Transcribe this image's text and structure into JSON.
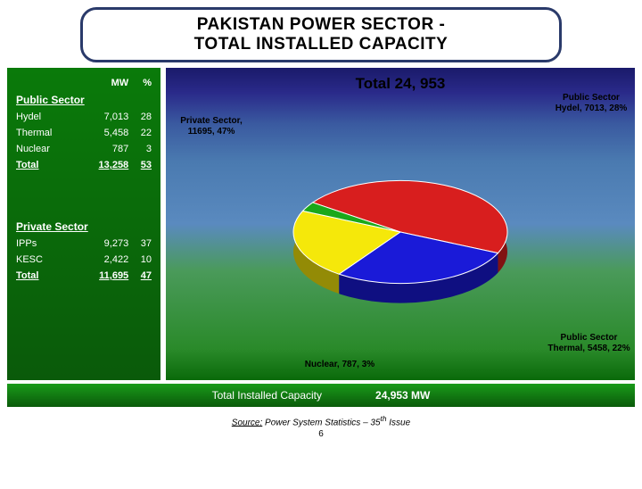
{
  "title_line1": "PAKISTAN POWER SECTOR -",
  "title_line2": "TOTAL INSTALLED CAPACITY",
  "table": {
    "col_mw": "MW",
    "col_pct": "%",
    "public_head": "Public Sector",
    "private_head": "Private Sector",
    "public_rows": [
      {
        "name": "Hydel",
        "mw": "7,013",
        "pct": "28"
      },
      {
        "name": "Thermal",
        "mw": "5,458",
        "pct": "22"
      },
      {
        "name": "Nuclear",
        "mw": "787",
        "pct": "3"
      }
    ],
    "public_total_mw": "13,258",
    "public_total_pct": "53",
    "private_rows": [
      {
        "name": "IPPs",
        "mw": "9,273",
        "pct": "37"
      },
      {
        "name": "KESC",
        "mw": "2,422",
        "pct": "10"
      }
    ],
    "private_total_mw": "11,695",
    "private_total_pct": "47",
    "total_label": "Total"
  },
  "chart": {
    "type": "pie",
    "total_text": "Total 24, 953",
    "slices": [
      {
        "name": "Private Sector",
        "value": 11695,
        "pct": 47,
        "color": "#d81e1e",
        "label": "Private Sector, 11695, 47%"
      },
      {
        "name": "Public Sector Hydel",
        "value": 7013,
        "pct": 28,
        "color": "#1a1ad8",
        "label": "Public Sector Hydel, 7013, 28%"
      },
      {
        "name": "Public Sector Thermal",
        "value": 5458,
        "pct": 22,
        "color": "#f5e80a",
        "label": "Public Sector Thermal, 5458, 22%"
      },
      {
        "name": "Nuclear",
        "value": 787,
        "pct": 3,
        "color": "#1aa81a",
        "label": "Nuclear, 787, 3%"
      }
    ],
    "radius": 120,
    "tilt": 0.48,
    "depth": 22,
    "start_angle": -145
  },
  "footer": {
    "left": "Total   Installed   Capacity",
    "right": "24,953  MW"
  },
  "source_prefix": "Source:",
  "source_text": " Power System Statistics – 35",
  "source_sup": "th",
  "source_suffix": " Issue",
  "page": "6"
}
